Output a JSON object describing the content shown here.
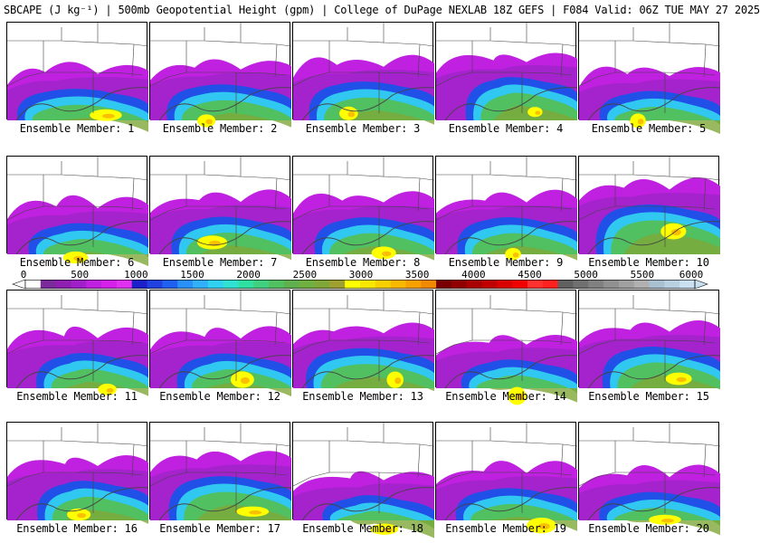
{
  "header": {
    "title": "SBCAPE (J kg⁻¹) | 500mb Geopotential Height (gpm) | College of DuPage NEXLAB 18Z GEFS | F084 Valid: 06Z TUE MAY 27 2025"
  },
  "colorbar": {
    "ticks": [
      "0",
      "500",
      "1000",
      "1500",
      "2000",
      "2500",
      "3000",
      "3500",
      "4000",
      "4500",
      "5000",
      "5500",
      "6000"
    ],
    "colors": [
      "#ffffff",
      "#7a2a9a",
      "#8e1fb0",
      "#a01fc8",
      "#c020e0",
      "#d420e8",
      "#e030f0",
      "#1c20c8",
      "#2040e0",
      "#2060f0",
      "#2890f8",
      "#30b0f8",
      "#30d0f0",
      "#30e0d0",
      "#30e0a0",
      "#40d080",
      "#50c060",
      "#60b050",
      "#70b040",
      "#80a838",
      "#a0a030",
      "#ffff00",
      "#f8e800",
      "#f8d000",
      "#f8b800",
      "#f8a000",
      "#f08800",
      "#7a0000",
      "#900000",
      "#a80000",
      "#c00000",
      "#d80000",
      "#f00000",
      "#ff3030",
      "#ff2020",
      "#606060",
      "#707070",
      "#808080",
      "#909090",
      "#a0a0a0",
      "#b0b0b0",
      "#a8c0d0",
      "#b8d0e0",
      "#c8e0f0"
    ]
  },
  "panels": [
    {
      "label": "Ensemble Member: 1"
    },
    {
      "label": "Ensemble Member: 2"
    },
    {
      "label": "Ensemble Member: 3"
    },
    {
      "label": "Ensemble Member: 4"
    },
    {
      "label": "Ensemble Member: 5"
    },
    {
      "label": "Ensemble Member: 6"
    },
    {
      "label": "Ensemble Member: 7"
    },
    {
      "label": "Ensemble Member: 8"
    },
    {
      "label": "Ensemble Member: 9"
    },
    {
      "label": "Ensemble Member: 10"
    },
    {
      "label": "Ensemble Member: 11"
    },
    {
      "label": "Ensemble Member: 12"
    },
    {
      "label": "Ensemble Member: 13"
    },
    {
      "label": "Ensemble Member: 14"
    },
    {
      "label": "Ensemble Member: 15"
    },
    {
      "label": "Ensemble Member: 16"
    },
    {
      "label": "Ensemble Member: 17"
    },
    {
      "label": "Ensemble Member: 18"
    },
    {
      "label": "Ensemble Member: 19"
    },
    {
      "label": "Ensemble Member: 20"
    }
  ]
}
